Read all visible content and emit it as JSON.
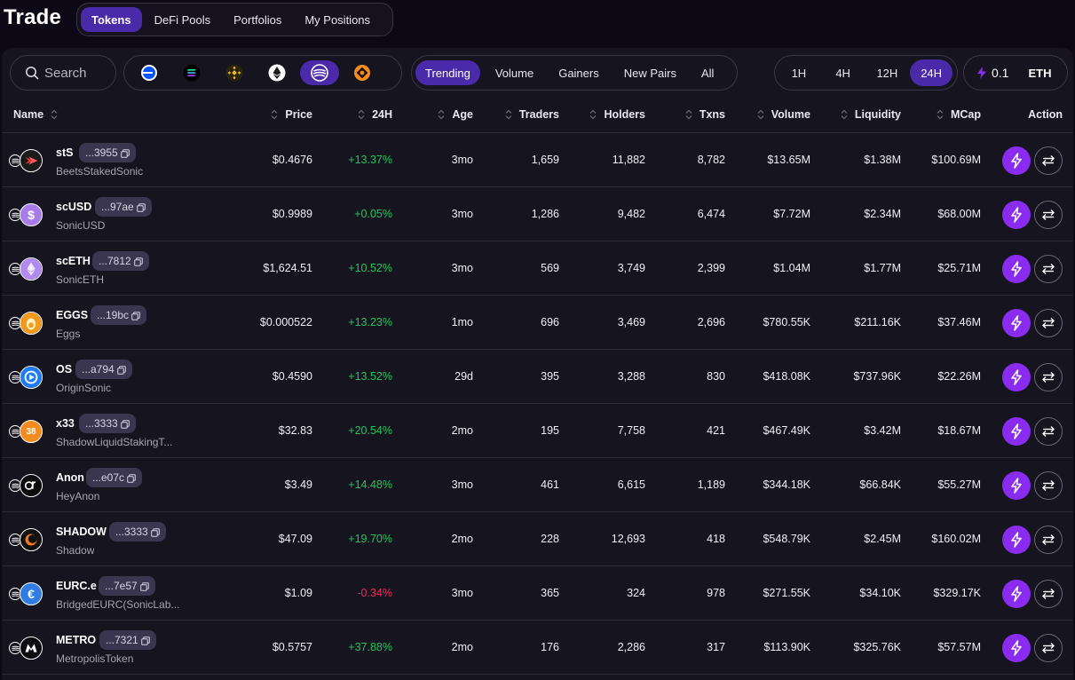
{
  "header": {
    "title": "Trade",
    "tabs": [
      {
        "label": "Tokens",
        "active": true
      },
      {
        "label": "DeFi Pools",
        "active": false
      },
      {
        "label": "Portfolios",
        "active": false
      },
      {
        "label": "My Positions",
        "active": false
      }
    ]
  },
  "controls": {
    "search": {
      "placeholder": "Search",
      "value": ""
    },
    "chains": [
      {
        "icon": "base-chain-icon",
        "active": false
      },
      {
        "icon": "solana-chain-icon",
        "active": false
      },
      {
        "icon": "bnb-chain-icon",
        "active": false
      },
      {
        "icon": "ethereum-chain-icon",
        "active": false
      },
      {
        "icon": "sonic-chain-icon",
        "active": true
      },
      {
        "icon": "other-chain-icon",
        "active": false
      }
    ],
    "sorts": [
      {
        "label": "Trending",
        "active": true
      },
      {
        "label": "Volume",
        "active": false
      },
      {
        "label": "Gainers",
        "active": false
      },
      {
        "label": "New Pairs",
        "active": false
      },
      {
        "label": "All",
        "active": false
      }
    ],
    "timeframes": [
      {
        "label": "1H",
        "active": false
      },
      {
        "label": "4H",
        "active": false
      },
      {
        "label": "12H",
        "active": false
      },
      {
        "label": "24H",
        "active": true
      }
    ],
    "quick_buy": {
      "amount": "0.1",
      "currency": "ETH"
    }
  },
  "table": {
    "headers": {
      "name": "Name",
      "price": "Price",
      "change": "24H",
      "age": "Age",
      "traders": "Traders",
      "holders": "Holders",
      "txns": "Txns",
      "volume": "Volume",
      "liquidity": "Liquidity",
      "mcap": "MCap",
      "action": "Action"
    },
    "rows": [
      {
        "symbol": "stS",
        "address": "...3955",
        "name": "BeetsStakedSonic",
        "price": "$0.4676",
        "change": "+13.37%",
        "change_dir": "pos",
        "age": "3mo",
        "traders": "1,659",
        "holders": "11,882",
        "txns": "8,782",
        "volume": "$13.65M",
        "liquidity": "$1.38M",
        "mcap": "$100.69M",
        "logo_color": "#1b1b1b",
        "logo_text": "",
        "logo_glyph": "sts"
      },
      {
        "symbol": "scUSD",
        "address": "...97ae",
        "name": "SonicUSD",
        "price": "$0.9989",
        "change": "+0.05%",
        "change_dir": "pos",
        "age": "3mo",
        "traders": "1,286",
        "holders": "9,482",
        "txns": "6,474",
        "volume": "$7.72M",
        "liquidity": "$2.34M",
        "mcap": "$68.00M",
        "logo_color": "#a77be8",
        "logo_text": "$",
        "logo_glyph": ""
      },
      {
        "symbol": "scETH",
        "address": "...7812",
        "name": "SonicETH",
        "price": "$1,624.51",
        "change": "+10.52%",
        "change_dir": "pos",
        "age": "3mo",
        "traders": "569",
        "holders": "3,749",
        "txns": "2,399",
        "volume": "$1.04M",
        "liquidity": "$1.77M",
        "mcap": "$25.71M",
        "logo_color": "#b18af0",
        "logo_text": "",
        "logo_glyph": "eth"
      },
      {
        "symbol": "EGGS",
        "address": "...19bc",
        "name": "Eggs",
        "price": "$0.000522",
        "change": "+13.23%",
        "change_dir": "pos",
        "age": "1mo",
        "traders": "696",
        "holders": "3,469",
        "txns": "2,696",
        "volume": "$780.55K",
        "liquidity": "$211.16K",
        "mcap": "$37.46M",
        "logo_color": "#f39a1c",
        "logo_text": "",
        "logo_glyph": "egg"
      },
      {
        "symbol": "OS",
        "address": "...a794",
        "name": "OriginSonic",
        "price": "$0.4590",
        "change": "+13.52%",
        "change_dir": "pos",
        "age": "29d",
        "traders": "395",
        "holders": "3,288",
        "txns": "830",
        "volume": "$418.08K",
        "liquidity": "$737.96K",
        "mcap": "$22.26M",
        "logo_color": "#1e7cf5",
        "logo_text": "",
        "logo_glyph": "os"
      },
      {
        "symbol": "x33",
        "address": "...3333",
        "name": "ShadowLiquidStakingT...",
        "price": "$32.83",
        "change": "+20.54%",
        "change_dir": "pos",
        "age": "2mo",
        "traders": "195",
        "holders": "7,758",
        "txns": "421",
        "volume": "$467.49K",
        "liquidity": "$3.42M",
        "mcap": "$18.67M",
        "logo_color": "#f28c1e",
        "logo_text": "38",
        "logo_glyph": ""
      },
      {
        "symbol": "Anon",
        "address": "...e07c",
        "name": "HeyAnon",
        "price": "$3.49",
        "change": "+14.48%",
        "change_dir": "pos",
        "age": "3mo",
        "traders": "461",
        "holders": "6,615",
        "txns": "1,189",
        "volume": "$344.18K",
        "liquidity": "$66.84K",
        "mcap": "$55.27M",
        "logo_color": "#0b0b0b",
        "logo_text": "",
        "logo_glyph": "anon"
      },
      {
        "symbol": "SHADOW",
        "address": "...3333",
        "name": "Shadow",
        "price": "$47.09",
        "change": "+19.70%",
        "change_dir": "pos",
        "age": "2mo",
        "traders": "228",
        "holders": "12,693",
        "txns": "418",
        "volume": "$548.79K",
        "liquidity": "$2.45M",
        "mcap": "$160.02M",
        "logo_color": "#111111",
        "logo_text": "",
        "logo_glyph": "shadow"
      },
      {
        "symbol": "EURC.e",
        "address": "...7e57",
        "name": "BridgedEURC(SonicLab...",
        "price": "$1.09",
        "change": "-0.34%",
        "change_dir": "neg",
        "age": "3mo",
        "traders": "365",
        "holders": "324",
        "txns": "978",
        "volume": "$271.55K",
        "liquidity": "$34.10K",
        "mcap": "$329.17K",
        "logo_color": "#2f7de1",
        "logo_text": "€",
        "logo_glyph": ""
      },
      {
        "symbol": "METRO",
        "address": "...7321",
        "name": "MetropolisToken",
        "price": "$0.5757",
        "change": "+37.88%",
        "change_dir": "pos",
        "age": "2mo",
        "traders": "176",
        "holders": "2,286",
        "txns": "317",
        "volume": "$113.90K",
        "liquidity": "$325.76K",
        "mcap": "$57.57M",
        "logo_color": "#0c0c10",
        "logo_text": "",
        "logo_glyph": "metro"
      }
    ]
  },
  "colors": {
    "accent": "#4a2aa8",
    "buy": "#8a2cf0",
    "positive": "#22c55e",
    "negative": "#e5305a"
  }
}
